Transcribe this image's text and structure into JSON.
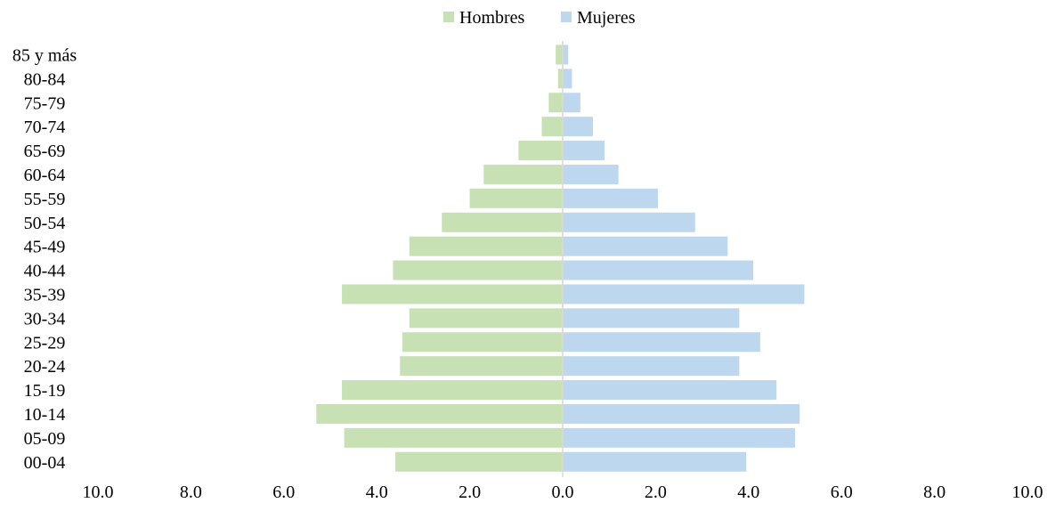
{
  "chart_data": {
    "type": "bar",
    "orientation": "horizontal",
    "layout": "population-pyramid",
    "categories": [
      "00-04",
      "05-09",
      "10-14",
      "15-19",
      "20-24",
      "25-29",
      "30-34",
      "35-39",
      "40-44",
      "45-49",
      "50-54",
      "55-59",
      "60-64",
      "65-69",
      "70-74",
      "75-79",
      "80-84",
      "85 y más"
    ],
    "series": [
      {
        "name": "Hombres",
        "color": "#c7e0b4",
        "side": "left",
        "values": [
          3.6,
          4.7,
          5.3,
          4.75,
          3.5,
          3.45,
          3.3,
          4.75,
          3.65,
          3.3,
          2.6,
          2.0,
          1.7,
          0.95,
          0.45,
          0.3,
          0.1,
          0.15
        ]
      },
      {
        "name": "Mujeres",
        "color": "#bdd7ee",
        "side": "right",
        "values": [
          3.95,
          5.0,
          5.1,
          4.6,
          3.8,
          4.25,
          3.8,
          5.2,
          4.1,
          3.55,
          2.85,
          2.05,
          1.2,
          0.9,
          0.65,
          0.38,
          0.2,
          0.12
        ]
      }
    ],
    "xlim": [
      -10,
      10
    ],
    "xticks": [
      "10.0",
      "8.0",
      "6.0",
      "4.0",
      "2.0",
      "0.0",
      "2.0",
      "4.0",
      "6.0",
      "8.0",
      "10.0"
    ],
    "legend": {
      "position": "top-center",
      "entries": [
        "Hombres",
        "Mujeres"
      ]
    },
    "grid": false,
    "title": "",
    "xlabel": "",
    "ylabel": ""
  }
}
